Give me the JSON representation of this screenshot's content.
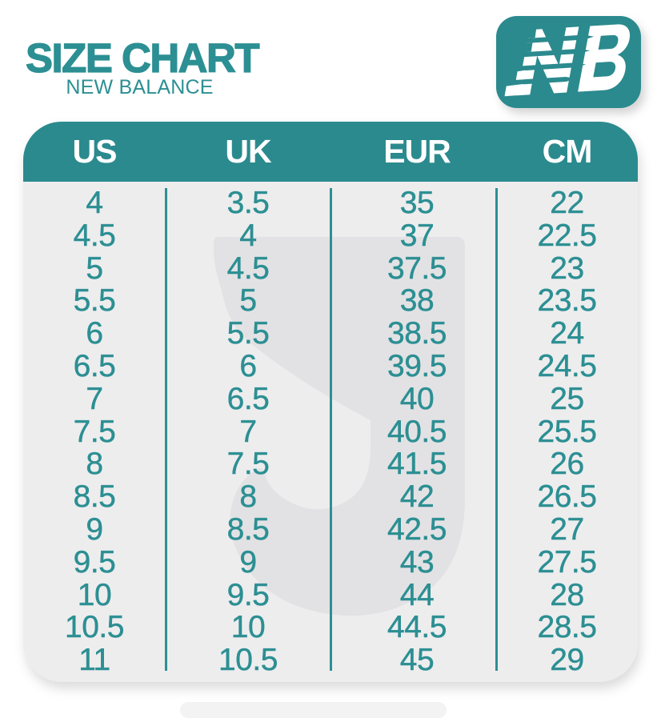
{
  "colors": {
    "teal": "#2b8a8e",
    "teal_text": "#2c8f93",
    "panel_bg": "#ededee",
    "watermark": "#e2e2e4",
    "white": "#ffffff",
    "page_bg": "#ffffff"
  },
  "header": {
    "title": "SIZE CHART",
    "subtitle": "NEW BALANCE",
    "logo": "new-balance-logo"
  },
  "table": {
    "columns": [
      "US",
      "UK",
      "EUR",
      "CM"
    ],
    "rows": [
      [
        "4",
        "3.5",
        "35",
        "22"
      ],
      [
        "4.5",
        "4",
        "37",
        "22.5"
      ],
      [
        "5",
        "4.5",
        "37.5",
        "23"
      ],
      [
        "5.5",
        "5",
        "38",
        "23.5"
      ],
      [
        "6",
        "5.5",
        "38.5",
        "24"
      ],
      [
        "6.5",
        "6",
        "39.5",
        "24.5"
      ],
      [
        "7",
        "6.5",
        "40",
        "25"
      ],
      [
        "7.5",
        "7",
        "40.5",
        "25.5"
      ],
      [
        "8",
        "7.5",
        "41.5",
        "26"
      ],
      [
        "8.5",
        "8",
        "42",
        "26.5"
      ],
      [
        "9",
        "8.5",
        "42.5",
        "27"
      ],
      [
        "9.5",
        "9",
        "43",
        "27.5"
      ],
      [
        "10",
        "9.5",
        "44",
        "28"
      ],
      [
        "10.5",
        "10",
        "44.5",
        "28.5"
      ],
      [
        "11",
        "10.5",
        "45",
        "29"
      ]
    ]
  }
}
